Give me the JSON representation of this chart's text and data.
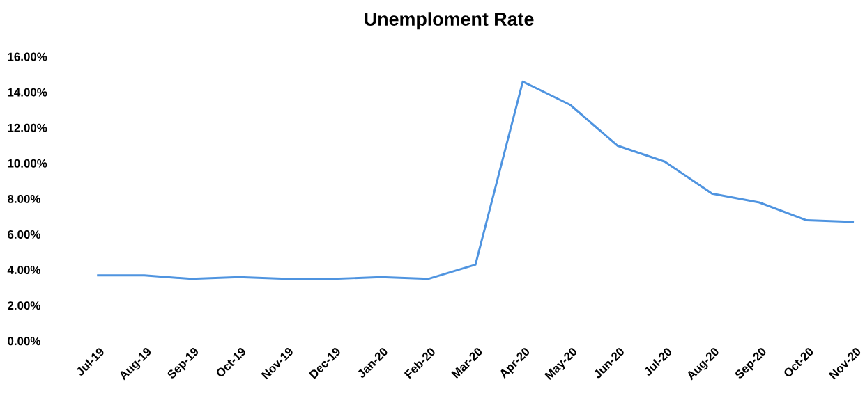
{
  "chart_data": {
    "type": "line",
    "title": "Unemploment Rate",
    "categories": [
      "Jul-19",
      "Aug-19",
      "Sep-19",
      "Oct-19",
      "Nov-19",
      "Dec-19",
      "Jan-20",
      "Feb-20",
      "Mar-20",
      "Apr-20",
      "May-20",
      "Jun-20",
      "Jul-20",
      "Aug-20",
      "Sep-20",
      "Oct-20",
      "Nov-20"
    ],
    "values": [
      3.7,
      3.7,
      3.5,
      3.6,
      3.5,
      3.5,
      3.6,
      3.5,
      4.3,
      14.6,
      13.3,
      11.0,
      10.1,
      8.3,
      7.8,
      6.8,
      6.7
    ],
    "color": "#4f94e0",
    "ylim": [
      0,
      16
    ],
    "yticks": [
      {
        "value": 0,
        "label": "0.00%"
      },
      {
        "value": 2,
        "label": "2.00%"
      },
      {
        "value": 4,
        "label": "4.00%"
      },
      {
        "value": 6,
        "label": "6.00%"
      },
      {
        "value": 8,
        "label": "8.00%"
      },
      {
        "value": 10,
        "label": "10.00%"
      },
      {
        "value": 12,
        "label": "12.00%"
      },
      {
        "value": 14,
        "label": "14.00%"
      },
      {
        "value": 16,
        "label": "16.00%"
      }
    ],
    "marker": "none",
    "line_style": "solid",
    "grid": false
  }
}
